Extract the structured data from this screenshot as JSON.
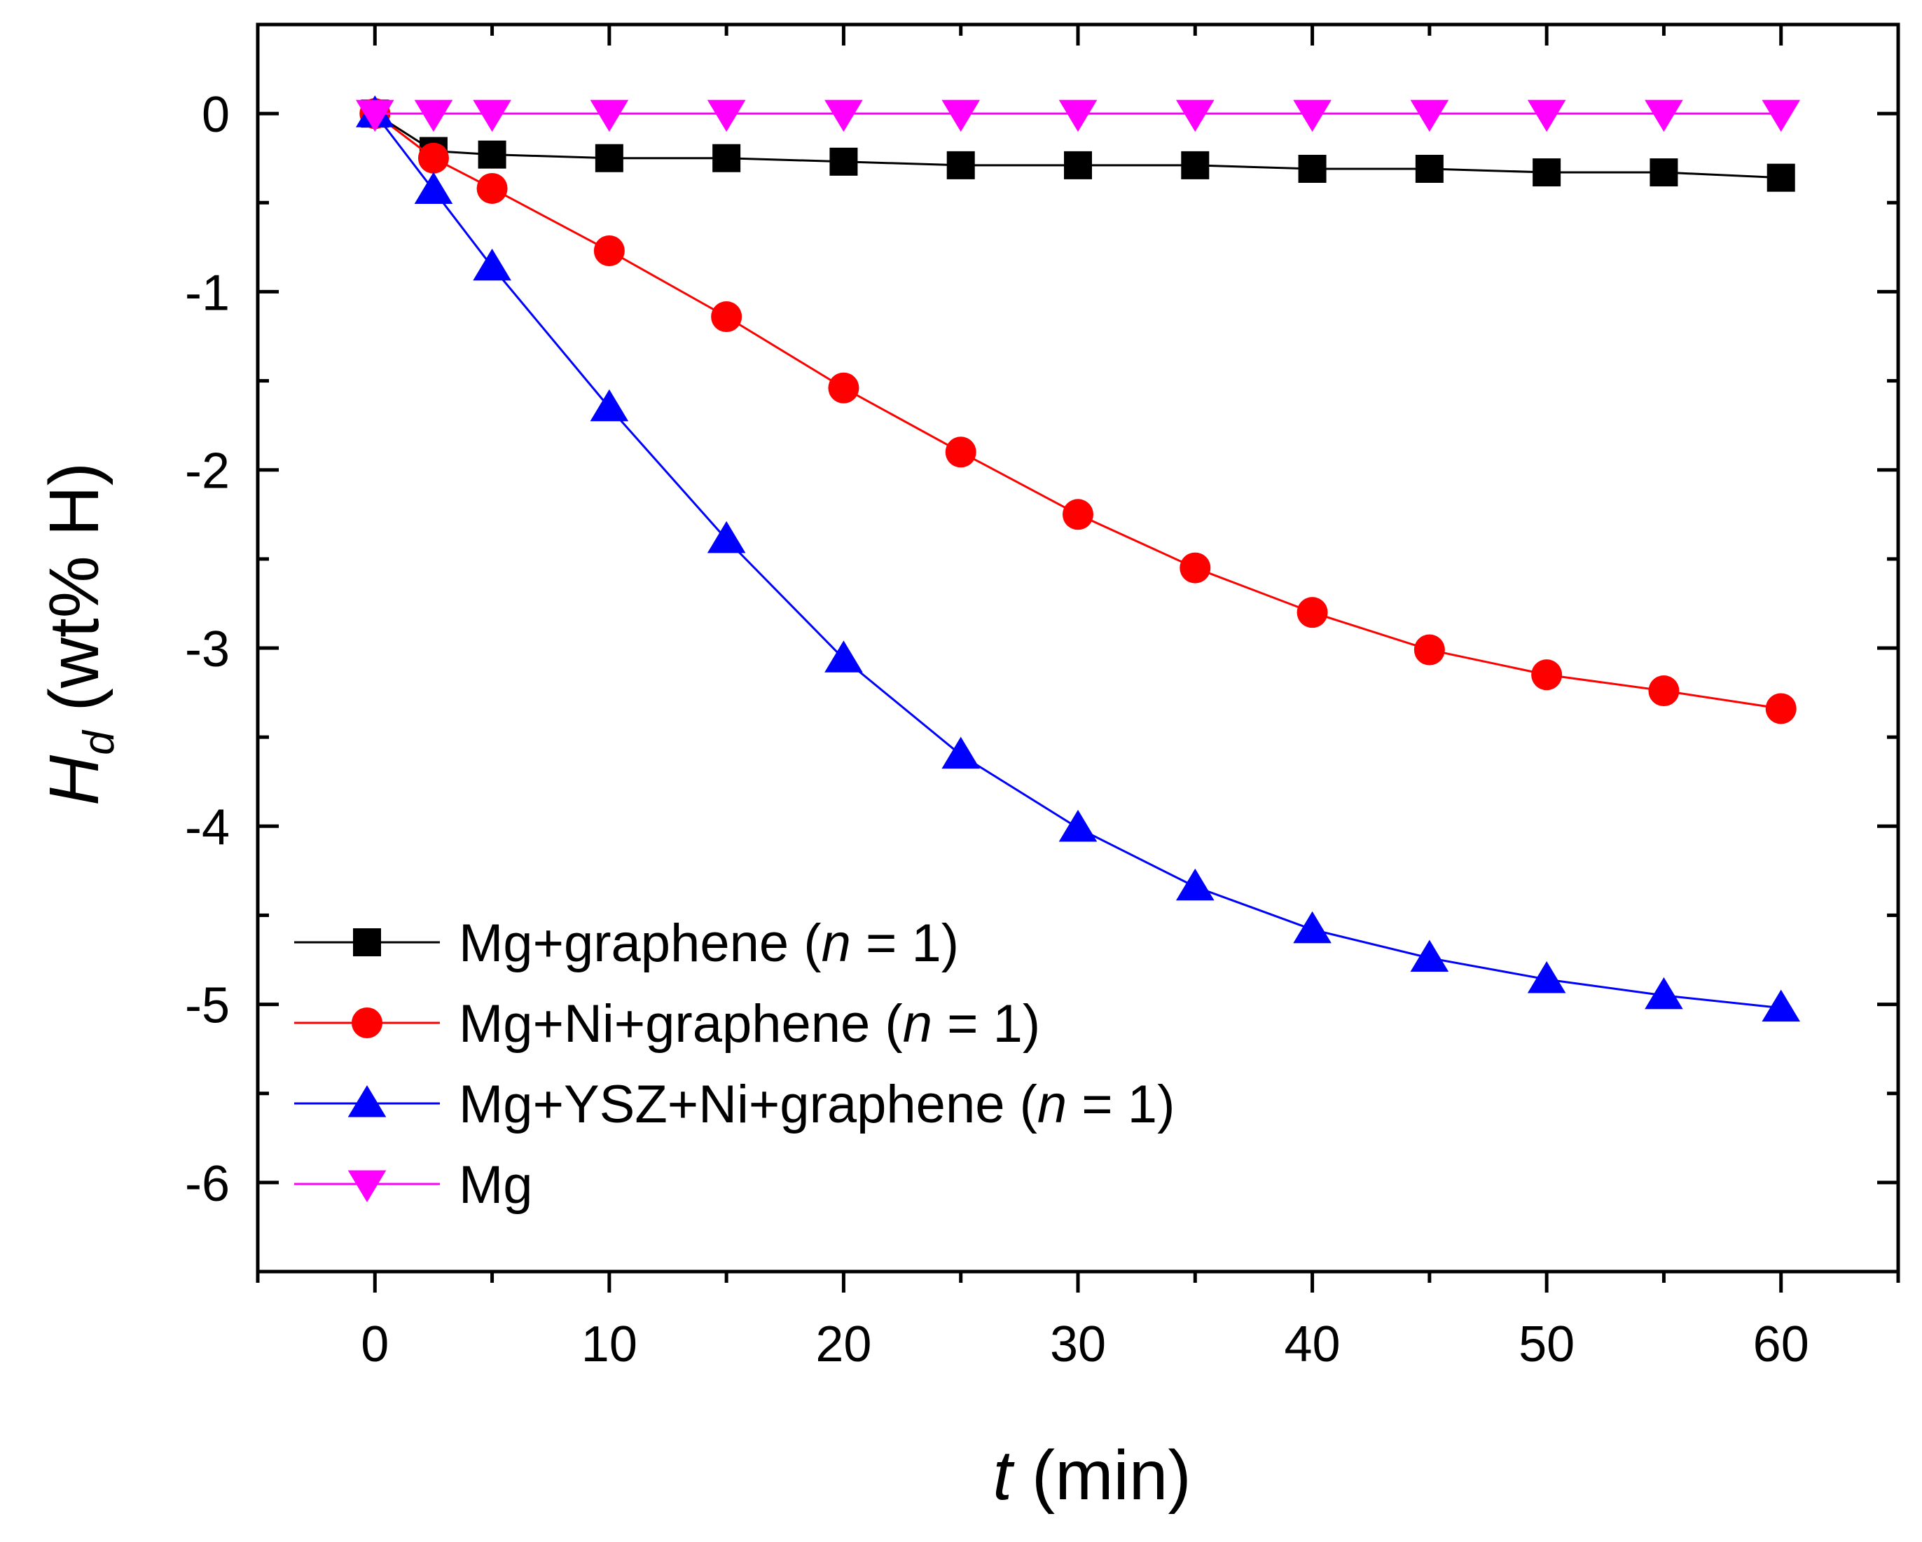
{
  "chart_data": {
    "type": "line",
    "title": "",
    "xlabel": {
      "symbol": "t",
      "unit": "(min)"
    },
    "ylabel": {
      "symbol": "H",
      "subscript": "d",
      "unit": "(wt% H)"
    },
    "xlim": [
      -5,
      65
    ],
    "ylim": [
      -6.5,
      0.5
    ],
    "xticks": [
      0,
      10,
      20,
      30,
      40,
      50,
      60
    ],
    "xtick_labels": [
      "0",
      "10",
      "20",
      "30",
      "40",
      "50",
      "60"
    ],
    "yticks": [
      0,
      -1,
      -2,
      -3,
      -4,
      -5,
      -6
    ],
    "ytick_labels": [
      "0",
      "-1",
      "-2",
      "-3",
      "-4",
      "-5",
      "-6"
    ],
    "grid": false,
    "legend_position": "bottom-left",
    "series": [
      {
        "name": "Mg+graphene (n = 1)",
        "label_main": "Mg+graphene (",
        "label_var": "n",
        "label_tail": " = 1)",
        "color": "#000000",
        "marker": "square",
        "x": [
          0,
          2.5,
          5,
          10,
          15,
          20,
          25,
          30,
          35,
          40,
          45,
          50,
          55,
          60
        ],
        "values": [
          0,
          -0.21,
          -0.23,
          -0.25,
          -0.25,
          -0.27,
          -0.29,
          -0.29,
          -0.29,
          -0.31,
          -0.31,
          -0.33,
          -0.33,
          -0.36
        ]
      },
      {
        "name": "Mg+Ni+graphene (n = 1)",
        "label_main": "Mg+Ni+graphene (",
        "label_var": "n",
        "label_tail": " = 1)",
        "color": "#ff0000",
        "marker": "circle",
        "x": [
          0,
          2.5,
          5,
          10,
          15,
          20,
          25,
          30,
          35,
          40,
          45,
          50,
          55,
          60
        ],
        "values": [
          0,
          -0.25,
          -0.42,
          -0.77,
          -1.14,
          -1.54,
          -1.9,
          -2.25,
          -2.55,
          -2.8,
          -3.01,
          -3.15,
          -3.24,
          -3.34
        ]
      },
      {
        "name": "Mg+YSZ+Ni+graphene (n = 1)",
        "label_main": "Mg+YSZ+Ni+graphene (",
        "label_var": "n",
        "label_tail": " = 1)",
        "color": "#0000ff",
        "marker": "triangle-up",
        "x": [
          0,
          2.5,
          5,
          10,
          15,
          20,
          25,
          30,
          35,
          40,
          45,
          50,
          55,
          60
        ],
        "values": [
          0,
          -0.43,
          -0.86,
          -1.65,
          -2.39,
          -3.06,
          -3.6,
          -4.01,
          -4.34,
          -4.58,
          -4.74,
          -4.86,
          -4.95,
          -5.02
        ]
      },
      {
        "name": "Mg",
        "label_main": "Mg",
        "label_var": "",
        "label_tail": "",
        "color": "#ff00ff",
        "marker": "triangle-down",
        "x": [
          0,
          2.5,
          5,
          10,
          15,
          20,
          25,
          30,
          35,
          40,
          45,
          50,
          55,
          60
        ],
        "values": [
          0,
          0,
          0,
          0,
          0,
          0,
          0,
          0,
          0,
          0,
          0,
          0,
          0,
          0
        ]
      }
    ]
  }
}
